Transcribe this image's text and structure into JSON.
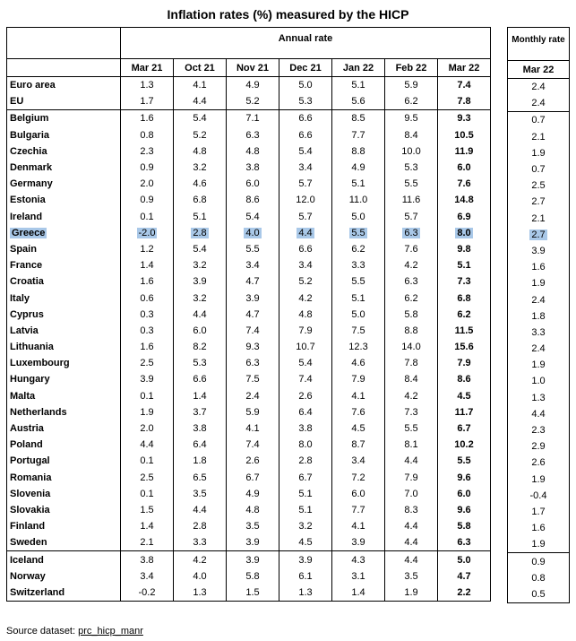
{
  "title": "Inflation rates (%) measured by the HICP",
  "annual_header": "Annual rate",
  "monthly_header": "Monthly rate",
  "columns": [
    "Mar 21",
    "Oct 21",
    "Nov 21",
    "Dec 21",
    "Jan 22",
    "Feb 22",
    "Mar 22"
  ],
  "monthly_column": "Mar 22",
  "rows": [
    {
      "name": "Euro area",
      "vals": [
        "1.3",
        "4.1",
        "4.9",
        "5.0",
        "5.1",
        "5.9",
        "7.4"
      ],
      "m": "2.4"
    },
    {
      "name": "EU",
      "vals": [
        "1.7",
        "4.4",
        "5.2",
        "5.3",
        "5.6",
        "6.2",
        "7.8"
      ],
      "m": "2.4"
    },
    {
      "name": "Belgium",
      "vals": [
        "1.6",
        "5.4",
        "7.1",
        "6.6",
        "8.5",
        "9.5",
        "9.3"
      ],
      "m": "0.7",
      "sep": true
    },
    {
      "name": "Bulgaria",
      "vals": [
        "0.8",
        "5.2",
        "6.3",
        "6.6",
        "7.7",
        "8.4",
        "10.5"
      ],
      "m": "2.1"
    },
    {
      "name": "Czechia",
      "vals": [
        "2.3",
        "4.8",
        "4.8",
        "5.4",
        "8.8",
        "10.0",
        "11.9"
      ],
      "m": "1.9"
    },
    {
      "name": "Denmark",
      "vals": [
        "0.9",
        "3.2",
        "3.8",
        "3.4",
        "4.9",
        "5.3",
        "6.0"
      ],
      "m": "0.7"
    },
    {
      "name": "Germany",
      "vals": [
        "2.0",
        "4.6",
        "6.0",
        "5.7",
        "5.1",
        "5.5",
        "7.6"
      ],
      "m": "2.5"
    },
    {
      "name": "Estonia",
      "vals": [
        "0.9",
        "6.8",
        "8.6",
        "12.0",
        "11.0",
        "11.6",
        "14.8"
      ],
      "m": "2.7"
    },
    {
      "name": "Ireland",
      "vals": [
        "0.1",
        "5.1",
        "5.4",
        "5.7",
        "5.0",
        "5.7",
        "6.9"
      ],
      "m": "2.1"
    },
    {
      "name": "Greece",
      "vals": [
        "-2.0",
        "2.8",
        "4.0",
        "4.4",
        "5.5",
        "6.3",
        "8.0"
      ],
      "m": "2.7",
      "hl": true
    },
    {
      "name": "Spain",
      "vals": [
        "1.2",
        "5.4",
        "5.5",
        "6.6",
        "6.2",
        "7.6",
        "9.8"
      ],
      "m": "3.9"
    },
    {
      "name": "France",
      "vals": [
        "1.4",
        "3.2",
        "3.4",
        "3.4",
        "3.3",
        "4.2",
        "5.1"
      ],
      "m": "1.6"
    },
    {
      "name": "Croatia",
      "vals": [
        "1.6",
        "3.9",
        "4.7",
        "5.2",
        "5.5",
        "6.3",
        "7.3"
      ],
      "m": "1.9"
    },
    {
      "name": "Italy",
      "vals": [
        "0.6",
        "3.2",
        "3.9",
        "4.2",
        "5.1",
        "6.2",
        "6.8"
      ],
      "m": "2.4"
    },
    {
      "name": "Cyprus",
      "vals": [
        "0.3",
        "4.4",
        "4.7",
        "4.8",
        "5.0",
        "5.8",
        "6.2"
      ],
      "m": "1.8"
    },
    {
      "name": "Latvia",
      "vals": [
        "0.3",
        "6.0",
        "7.4",
        "7.9",
        "7.5",
        "8.8",
        "11.5"
      ],
      "m": "3.3"
    },
    {
      "name": "Lithuania",
      "vals": [
        "1.6",
        "8.2",
        "9.3",
        "10.7",
        "12.3",
        "14.0",
        "15.6"
      ],
      "m": "2.4"
    },
    {
      "name": "Luxembourg",
      "vals": [
        "2.5",
        "5.3",
        "6.3",
        "5.4",
        "4.6",
        "7.8",
        "7.9"
      ],
      "m": "1.9"
    },
    {
      "name": "Hungary",
      "vals": [
        "3.9",
        "6.6",
        "7.5",
        "7.4",
        "7.9",
        "8.4",
        "8.6"
      ],
      "m": "1.0"
    },
    {
      "name": "Malta",
      "vals": [
        "0.1",
        "1.4",
        "2.4",
        "2.6",
        "4.1",
        "4.2",
        "4.5"
      ],
      "m": "1.3"
    },
    {
      "name": "Netherlands",
      "vals": [
        "1.9",
        "3.7",
        "5.9",
        "6.4",
        "7.6",
        "7.3",
        "11.7"
      ],
      "m": "4.4"
    },
    {
      "name": "Austria",
      "vals": [
        "2.0",
        "3.8",
        "4.1",
        "3.8",
        "4.5",
        "5.5",
        "6.7"
      ],
      "m": "2.3"
    },
    {
      "name": "Poland",
      "vals": [
        "4.4",
        "6.4",
        "7.4",
        "8.0",
        "8.7",
        "8.1",
        "10.2"
      ],
      "m": "2.9"
    },
    {
      "name": "Portugal",
      "vals": [
        "0.1",
        "1.8",
        "2.6",
        "2.8",
        "3.4",
        "4.4",
        "5.5"
      ],
      "m": "2.6"
    },
    {
      "name": "Romania",
      "vals": [
        "2.5",
        "6.5",
        "6.7",
        "6.7",
        "7.2",
        "7.9",
        "9.6"
      ],
      "m": "1.9"
    },
    {
      "name": "Slovenia",
      "vals": [
        "0.1",
        "3.5",
        "4.9",
        "5.1",
        "6.0",
        "7.0",
        "6.0"
      ],
      "m": "-0.4"
    },
    {
      "name": "Slovakia",
      "vals": [
        "1.5",
        "4.4",
        "4.8",
        "5.1",
        "7.7",
        "8.3",
        "9.6"
      ],
      "m": "1.7"
    },
    {
      "name": "Finland",
      "vals": [
        "1.4",
        "2.8",
        "3.5",
        "3.2",
        "4.1",
        "4.4",
        "5.8"
      ],
      "m": "1.6"
    },
    {
      "name": "Sweden",
      "vals": [
        "2.1",
        "3.3",
        "3.9",
        "4.5",
        "3.9",
        "4.4",
        "6.3"
      ],
      "m": "1.9"
    },
    {
      "name": "Iceland",
      "vals": [
        "3.8",
        "4.2",
        "3.9",
        "3.9",
        "4.3",
        "4.4",
        "5.0"
      ],
      "m": "0.9",
      "sep": true
    },
    {
      "name": "Norway",
      "vals": [
        "3.4",
        "4.0",
        "5.8",
        "6.1",
        "3.1",
        "3.5",
        "4.7"
      ],
      "m": "0.8"
    },
    {
      "name": "Switzerland",
      "vals": [
        "-0.2",
        "1.3",
        "1.5",
        "1.3",
        "1.4",
        "1.9",
        "2.2"
      ],
      "m": "0.5"
    }
  ],
  "source_label": "Source dataset:",
  "source_link": "prc_hicp_manr",
  "highlight_color": "#a9c8e8"
}
